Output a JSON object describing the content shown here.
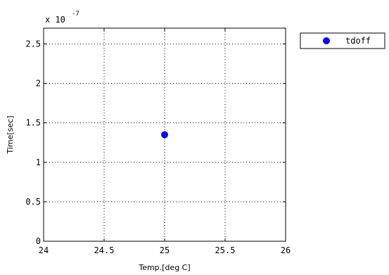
{
  "chart_data": {
    "type": "scatter",
    "title": "",
    "xlabel": "Temp.[deg C]",
    "ylabel": "Time[sec]",
    "y_exponent_label": "x 10",
    "y_exponent_power": "-7",
    "xlim": [
      24,
      26
    ],
    "ylim": [
      0,
      2.7
    ],
    "xticks": [
      24,
      24.5,
      25,
      25.5,
      26
    ],
    "xtick_labels": [
      "24",
      "24.5",
      "25",
      "25.5",
      "26"
    ],
    "yticks": [
      0,
      0.5,
      1,
      1.5,
      2,
      2.5
    ],
    "ytick_labels": [
      "0",
      "0.5",
      "1",
      "1.5",
      "2",
      "2.5"
    ],
    "grid": true,
    "legend_position": "outside-top-right",
    "series": [
      {
        "name": "tdoff",
        "color": "#0000ff",
        "marker": "circle",
        "points": [
          {
            "x": 25,
            "y": 1.35
          }
        ]
      }
    ]
  }
}
